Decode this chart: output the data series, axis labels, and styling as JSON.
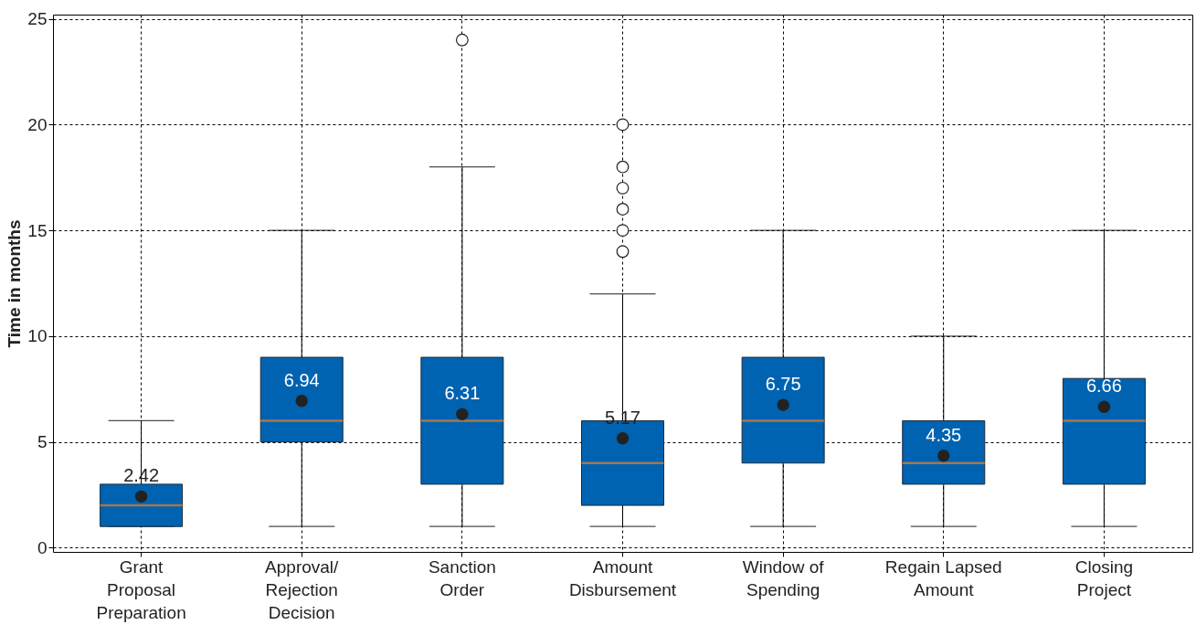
{
  "chart_data": {
    "type": "box",
    "ylabel": "Time in months",
    "categories": [
      "Grant\nProposal\nPreparation",
      "Approval/\nRejection\nDecision",
      "Sanction\nOrder",
      "Amount\nDisbursement",
      "Window of\nSpending",
      "Regain Lapsed\nAmount",
      "Closing\nProject"
    ],
    "boxes": [
      {
        "low": 1,
        "q1": 1,
        "median": 2,
        "q3": 3,
        "high": 6,
        "mean": 2.42
      },
      {
        "low": 1,
        "q1": 5,
        "median": 6,
        "q3": 9,
        "high": 15,
        "mean": 6.94
      },
      {
        "low": 1,
        "q1": 3,
        "median": 6,
        "q3": 9,
        "high": 18,
        "mean": 6.31,
        "outliers": [
          24
        ]
      },
      {
        "low": 1,
        "q1": 2,
        "median": 4,
        "q3": 6,
        "high": 12,
        "mean": 5.17,
        "outliers": [
          14,
          15,
          16,
          17,
          18,
          20
        ]
      },
      {
        "low": 1,
        "q1": 4,
        "median": 6,
        "q3": 9,
        "high": 15,
        "mean": 6.75
      },
      {
        "low": 1,
        "q1": 3,
        "median": 4,
        "q3": 6,
        "high": 10,
        "mean": 4.35
      },
      {
        "low": 1,
        "q1": 3,
        "median": 6,
        "q3": 8,
        "high": 15,
        "mean": 6.66
      }
    ],
    "color": "#0063b1",
    "annotations": [
      {
        "text": "2.42",
        "x": "Grant\nProposal\nPreparation",
        "y": 2.42
      },
      {
        "text": "6.94",
        "x": "Approval/\nRejection\nDecision",
        "y": 6.94
      },
      {
        "text": "6.31",
        "x": "Sanction\nOrder",
        "y": 6.31
      },
      {
        "text": "5.17",
        "x": "Amount\nDisbursement",
        "y": 5.17
      },
      {
        "text": "6.75",
        "x": "Window of\nSpending",
        "y": 6.75
      },
      {
        "text": "4.35",
        "x": "Regain Lapsed\nAmount",
        "y": 4.35
      },
      {
        "text": "6.66",
        "x": "Closing\nProject",
        "y": 6.66
      }
    ],
    "ylim": [
      -0.2,
      25.2
    ],
    "yticks": [
      0,
      5,
      10,
      15,
      20,
      25
    ],
    "grid": true
  }
}
